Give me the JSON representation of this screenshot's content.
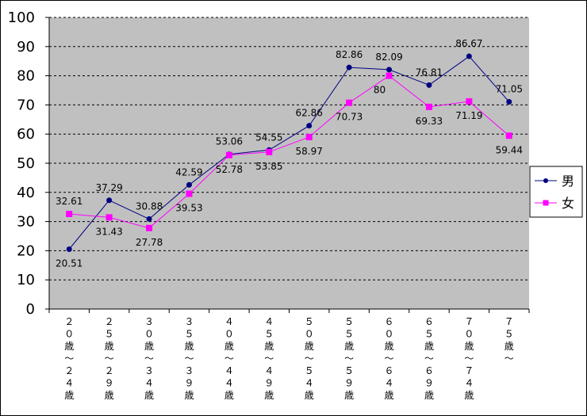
{
  "chart_data": {
    "type": "line",
    "title": "",
    "xlabel": "",
    "ylabel": "",
    "ylim": [
      0,
      100
    ],
    "yticks": [
      0,
      10,
      20,
      30,
      40,
      50,
      60,
      70,
      80,
      90,
      100
    ],
    "grid": true,
    "legend_position": "right",
    "plot_background": "#c0c0c0",
    "categories": [
      "２０歳～２４歳",
      "２５歳～２９歳",
      "３０歳～３４歳",
      "３５歳～３９歳",
      "４０歳～４４歳",
      "４５歳～４９歳",
      "５０歳～５４歳",
      "５５歳～５９歳",
      "６０歳～６４歳",
      "６５歳～６９歳",
      "７０歳～７４歳",
      "７５歳～"
    ],
    "series": [
      {
        "name": "男",
        "color": "#000080",
        "marker": "circle",
        "values": [
          20.51,
          37.29,
          30.88,
          42.59,
          53.06,
          54.55,
          62.86,
          82.86,
          82.09,
          76.81,
          86.67,
          71.05
        ],
        "labels": [
          "20.51",
          "37.29",
          "30.88",
          "42.59",
          "53.06",
          "54.55",
          "62.86",
          "82.86",
          "82.09",
          "76.81",
          "86.67",
          "71.05"
        ]
      },
      {
        "name": "女",
        "color": "#ff00ff",
        "marker": "square",
        "values": [
          32.61,
          31.43,
          27.78,
          39.53,
          52.78,
          53.85,
          58.97,
          70.73,
          80,
          69.33,
          71.19,
          59.44
        ],
        "labels": [
          "32.61",
          "31.43",
          "27.78",
          "39.53",
          "52.78",
          "53.85",
          "58.97",
          "70.73",
          "80",
          "69.33",
          "71.19",
          "59.44"
        ]
      }
    ]
  }
}
